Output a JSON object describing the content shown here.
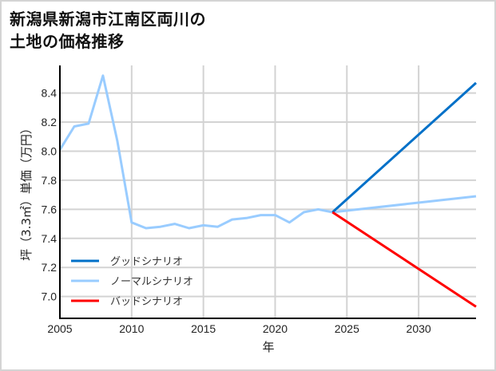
{
  "title": {
    "line1": "新潟県新潟市江南区両川の",
    "line2": "土地の価格推移"
  },
  "colors": {
    "good": "#0070c8",
    "normal": "#99ccff",
    "bad": "#ff0000",
    "grid": "#d3d3d3",
    "axis": "#000000"
  },
  "chart_data": {
    "type": "line",
    "title": "新潟県新潟市江南区両川の土地の価格推移",
    "xlabel": "年",
    "ylabel": "坪（3.3㎡）単価（万円）",
    "xlim": [
      2005,
      2034
    ],
    "ylim": [
      6.85,
      8.59
    ],
    "x_ticks": [
      2005,
      2010,
      2015,
      2020,
      2025,
      2030
    ],
    "y_ticks": [
      7.0,
      7.2,
      7.4,
      7.6,
      7.8,
      8.0,
      8.2,
      8.4
    ],
    "grid": true,
    "legend_position": "lower left",
    "series": [
      {
        "name": "グッドシナリオ",
        "color": "#0070c8",
        "x": [
          2024,
          2034
        ],
        "values": [
          7.58,
          8.47
        ]
      },
      {
        "name": "ノーマルシナリオ",
        "color": "#99ccff",
        "x": [
          2005,
          2006,
          2007,
          2008,
          2009,
          2010,
          2011,
          2012,
          2013,
          2014,
          2015,
          2016,
          2017,
          2018,
          2019,
          2020,
          2021,
          2022,
          2023,
          2024,
          2034
        ],
        "values": [
          8.01,
          8.17,
          8.19,
          8.52,
          8.07,
          7.51,
          7.47,
          7.48,
          7.5,
          7.47,
          7.49,
          7.48,
          7.53,
          7.54,
          7.56,
          7.56,
          7.51,
          7.58,
          7.6,
          7.58,
          7.69
        ]
      },
      {
        "name": "バッドシナリオ",
        "color": "#ff0000",
        "x": [
          2024,
          2034
        ],
        "values": [
          7.58,
          6.93
        ]
      }
    ]
  },
  "axis": {
    "xlabel": "年",
    "ylabel": "坪（3.3㎡）単価（万円）",
    "x_tick_labels": [
      "2005",
      "2010",
      "2015",
      "2020",
      "2025",
      "2030"
    ],
    "y_tick_labels": [
      "7.0",
      "7.2",
      "7.4",
      "7.6",
      "7.8",
      "8.0",
      "8.2",
      "8.4"
    ]
  },
  "legend": [
    {
      "label": "グッドシナリオ",
      "color": "#0070c8"
    },
    {
      "label": "ノーマルシナリオ",
      "color": "#99ccff"
    },
    {
      "label": "バッドシナリオ",
      "color": "#ff0000"
    }
  ]
}
